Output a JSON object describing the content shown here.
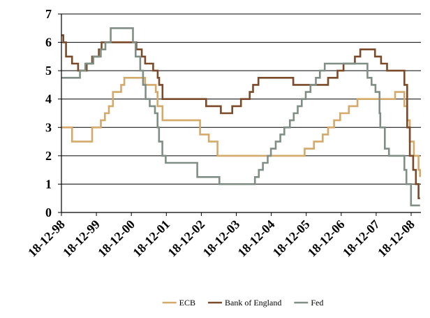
{
  "chart_data": {
    "type": "line",
    "title": "",
    "xlabel": "",
    "ylabel": "",
    "ylim": [
      0,
      7
    ],
    "y_ticks": [
      "0",
      "1",
      "2",
      "3",
      "4",
      "5",
      "6",
      "7"
    ],
    "x_ticks": [
      "18-12-98",
      "18-12-99",
      "18-12-00",
      "18-12-01",
      "18-12-02",
      "18-12-03",
      "18-12-04",
      "18-12-05",
      "18-12-06",
      "18-12-07",
      "18-12-08"
    ],
    "grid": "horizontal",
    "legend_position": "bottom",
    "series": [
      {
        "name": "ECB",
        "color": "#D4A96A",
        "points": [
          [
            "1998-12-18",
            3.0
          ],
          [
            "1999-04-08",
            2.5
          ],
          [
            "1999-11-04",
            3.0
          ],
          [
            "2000-02-03",
            3.25
          ],
          [
            "2000-03-16",
            3.5
          ],
          [
            "2000-04-27",
            3.75
          ],
          [
            "2000-06-08",
            4.25
          ],
          [
            "2000-09-01",
            4.5
          ],
          [
            "2000-10-05",
            4.75
          ],
          [
            "2001-05-10",
            4.5
          ],
          [
            "2001-08-30",
            4.25
          ],
          [
            "2001-09-17",
            3.75
          ],
          [
            "2001-11-08",
            3.25
          ],
          [
            "2002-12-05",
            2.75
          ],
          [
            "2003-03-06",
            2.5
          ],
          [
            "2003-06-05",
            2.0
          ],
          [
            "2005-12-01",
            2.25
          ],
          [
            "2006-03-08",
            2.5
          ],
          [
            "2006-06-08",
            2.75
          ],
          [
            "2006-08-03",
            3.0
          ],
          [
            "2006-10-05",
            3.25
          ],
          [
            "2006-12-07",
            3.5
          ],
          [
            "2007-03-08",
            3.75
          ],
          [
            "2007-06-06",
            4.0
          ],
          [
            "2008-07-03",
            4.25
          ],
          [
            "2008-10-08",
            3.75
          ],
          [
            "2008-11-06",
            3.25
          ],
          [
            "2008-12-04",
            2.5
          ],
          [
            "2009-01-15",
            2.0
          ],
          [
            "2009-03-05",
            1.5
          ],
          [
            "2009-03-20",
            1.25
          ]
        ]
      },
      {
        "name": "Bank of England",
        "color": "#7B4A28",
        "points": [
          [
            "1998-12-18",
            6.25
          ],
          [
            "1999-01-07",
            6.0
          ],
          [
            "1999-02-04",
            5.5
          ],
          [
            "1999-04-08",
            5.25
          ],
          [
            "1999-06-10",
            5.0
          ],
          [
            "1999-09-08",
            5.25
          ],
          [
            "1999-11-04",
            5.5
          ],
          [
            "2000-01-13",
            5.75
          ],
          [
            "2000-02-10",
            6.0
          ],
          [
            "2001-02-08",
            5.75
          ],
          [
            "2001-04-05",
            5.5
          ],
          [
            "2001-05-10",
            5.25
          ],
          [
            "2001-08-02",
            5.0
          ],
          [
            "2001-09-18",
            4.75
          ],
          [
            "2001-10-04",
            4.5
          ],
          [
            "2001-11-08",
            4.0
          ],
          [
            "2003-02-06",
            3.75
          ],
          [
            "2003-07-10",
            3.5
          ],
          [
            "2003-11-06",
            3.75
          ],
          [
            "2004-02-05",
            4.0
          ],
          [
            "2004-05-06",
            4.25
          ],
          [
            "2004-06-10",
            4.5
          ],
          [
            "2004-08-05",
            4.75
          ],
          [
            "2005-08-04",
            4.5
          ],
          [
            "2006-08-03",
            4.75
          ],
          [
            "2006-11-09",
            5.0
          ],
          [
            "2007-01-11",
            5.25
          ],
          [
            "2007-05-10",
            5.5
          ],
          [
            "2007-07-05",
            5.75
          ],
          [
            "2007-12-06",
            5.5
          ],
          [
            "2008-02-07",
            5.25
          ],
          [
            "2008-04-10",
            5.0
          ],
          [
            "2008-10-08",
            4.5
          ],
          [
            "2008-11-06",
            3.0
          ],
          [
            "2008-12-04",
            2.0
          ],
          [
            "2009-01-08",
            1.5
          ],
          [
            "2009-02-05",
            1.0
          ],
          [
            "2009-03-05",
            0.5
          ],
          [
            "2009-03-20",
            0.5
          ]
        ]
      },
      {
        "name": "Fed",
        "color": "#808F86",
        "points": [
          [
            "1998-12-18",
            4.75
          ],
          [
            "1999-06-30",
            5.0
          ],
          [
            "1999-08-24",
            5.25
          ],
          [
            "1999-11-16",
            5.5
          ],
          [
            "2000-02-02",
            5.75
          ],
          [
            "2000-03-21",
            6.0
          ],
          [
            "2000-05-16",
            6.5
          ],
          [
            "2001-01-03",
            6.0
          ],
          [
            "2001-01-31",
            5.5
          ],
          [
            "2001-03-20",
            5.0
          ],
          [
            "2001-04-18",
            4.5
          ],
          [
            "2001-05-15",
            4.0
          ],
          [
            "2001-06-27",
            3.75
          ],
          [
            "2001-08-21",
            3.5
          ],
          [
            "2001-09-17",
            3.0
          ],
          [
            "2001-10-02",
            2.5
          ],
          [
            "2001-11-06",
            2.0
          ],
          [
            "2001-12-11",
            1.75
          ],
          [
            "2002-11-06",
            1.25
          ],
          [
            "2003-06-25",
            1.0
          ],
          [
            "2004-06-30",
            1.25
          ],
          [
            "2004-08-10",
            1.5
          ],
          [
            "2004-09-21",
            1.75
          ],
          [
            "2004-11-10",
            2.0
          ],
          [
            "2004-12-14",
            2.25
          ],
          [
            "2005-02-02",
            2.5
          ],
          [
            "2005-03-22",
            2.75
          ],
          [
            "2005-05-03",
            3.0
          ],
          [
            "2005-06-30",
            3.25
          ],
          [
            "2005-08-09",
            3.5
          ],
          [
            "2005-09-20",
            3.75
          ],
          [
            "2005-11-01",
            4.0
          ],
          [
            "2005-12-13",
            4.25
          ],
          [
            "2006-01-31",
            4.5
          ],
          [
            "2006-03-28",
            4.75
          ],
          [
            "2006-05-10",
            5.0
          ],
          [
            "2006-06-29",
            5.25
          ],
          [
            "2007-09-18",
            4.75
          ],
          [
            "2007-10-31",
            4.5
          ],
          [
            "2007-12-11",
            4.25
          ],
          [
            "2008-01-22",
            3.5
          ],
          [
            "2008-01-30",
            3.0
          ],
          [
            "2008-03-18",
            2.25
          ],
          [
            "2008-04-30",
            2.0
          ],
          [
            "2008-10-08",
            1.5
          ],
          [
            "2008-10-29",
            1.0
          ],
          [
            "2008-12-16",
            0.25
          ],
          [
            "2009-03-20",
            0.25
          ]
        ]
      }
    ]
  }
}
